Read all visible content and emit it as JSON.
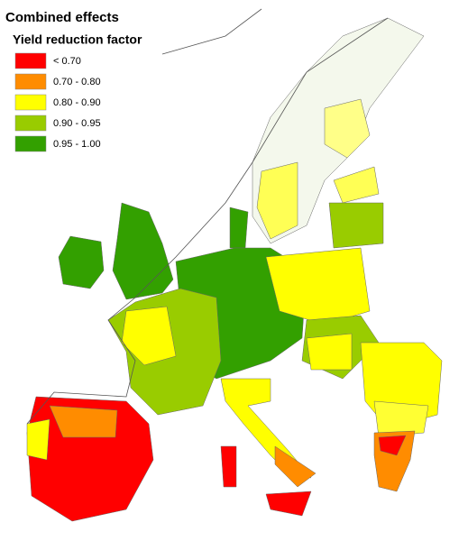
{
  "title": "Combined effects",
  "legend": {
    "title": "Yield reduction factor",
    "items": [
      {
        "label": "< 0.70",
        "color": "#ff0000"
      },
      {
        "label": "0.70 - 0.80",
        "color": "#ff8c00"
      },
      {
        "label": "0.80 - 0.90",
        "color": "#ffff00"
      },
      {
        "label": "0.90 - 0.95",
        "color": "#99cc00"
      },
      {
        "label": "0.95 - 1.00",
        "color": "#33a000"
      }
    ]
  }
}
